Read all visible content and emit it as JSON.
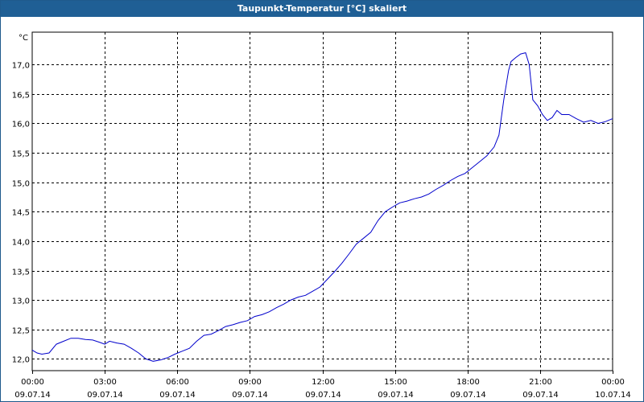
{
  "window": {
    "title": "Taupunkt-Temperatur [°C] skaliert"
  },
  "colors": {
    "titlebar": "#1f5f95",
    "line": "#0000cc",
    "grid": "#000000"
  },
  "chart_data": {
    "type": "line",
    "title": "Taupunkt-Temperatur [°C] skaliert",
    "ylabel": "°C",
    "xlabel": "",
    "grid": true,
    "ylim": [
      11.8,
      17.55
    ],
    "xlim_hours": [
      0,
      24
    ],
    "yticks": [
      "12,0",
      "12,5",
      "13,0",
      "13,5",
      "14,0",
      "14,5",
      "15,0",
      "15,5",
      "16,0",
      "16,5",
      "17,0"
    ],
    "ytick_values": [
      12.0,
      12.5,
      13.0,
      13.5,
      14.0,
      14.5,
      15.0,
      15.5,
      16.0,
      16.5,
      17.0
    ],
    "xticks": [
      {
        "time": "00:00",
        "date": "09.07.14"
      },
      {
        "time": "03:00",
        "date": "09.07.14"
      },
      {
        "time": "06:00",
        "date": "09.07.14"
      },
      {
        "time": "09:00",
        "date": "09.07.14"
      },
      {
        "time": "12:00",
        "date": "09.07.14"
      },
      {
        "time": "15:00",
        "date": "09.07.14"
      },
      {
        "time": "18:00",
        "date": "09.07.14"
      },
      {
        "time": "21:00",
        "date": "09.07.14"
      },
      {
        "time": "00:00",
        "date": "10.07.14"
      }
    ],
    "xtick_hours": [
      0,
      3,
      6,
      9,
      12,
      15,
      18,
      21,
      24
    ],
    "series": [
      {
        "x": [
          0.0,
          0.2,
          0.4,
          0.7,
          1.0,
          1.3,
          1.6,
          1.9,
          2.2,
          2.5,
          2.8,
          3.0,
          3.2,
          3.5,
          3.8,
          4.1,
          4.4,
          4.7,
          5.0,
          5.3,
          5.6,
          5.9,
          6.2,
          6.5,
          6.8,
          7.1,
          7.4,
          7.7,
          8.0,
          8.3,
          8.6,
          8.9,
          9.2,
          9.5,
          9.8,
          10.1,
          10.4,
          10.7,
          11.0,
          11.3,
          11.6,
          11.9,
          12.2,
          12.5,
          12.8,
          13.1,
          13.4,
          13.7,
          14.0,
          14.3,
          14.6,
          14.9,
          15.2,
          15.5,
          15.8,
          16.1,
          16.4,
          16.7,
          17.0,
          17.3,
          17.6,
          17.9,
          18.2,
          18.5,
          18.8,
          19.1,
          19.3,
          19.5,
          19.7,
          19.8,
          20.0,
          20.2,
          20.4,
          20.55,
          20.7,
          20.9,
          21.1,
          21.3,
          21.5,
          21.7,
          21.9,
          22.2,
          22.5,
          22.8,
          23.1,
          23.4,
          23.7,
          24.0
        ],
        "y": [
          12.15,
          12.1,
          12.08,
          12.1,
          12.25,
          12.3,
          12.35,
          12.35,
          12.33,
          12.32,
          12.28,
          12.25,
          12.3,
          12.27,
          12.25,
          12.18,
          12.1,
          12.0,
          11.96,
          11.98,
          12.02,
          12.08,
          12.13,
          12.18,
          12.3,
          12.4,
          12.42,
          12.48,
          12.55,
          12.58,
          12.62,
          12.65,
          12.72,
          12.75,
          12.8,
          12.87,
          12.93,
          13.0,
          13.05,
          13.08,
          13.15,
          13.22,
          13.35,
          13.48,
          13.62,
          13.78,
          13.95,
          14.05,
          14.15,
          14.35,
          14.5,
          14.58,
          14.65,
          14.68,
          14.72,
          14.75,
          14.8,
          14.88,
          14.95,
          15.03,
          15.1,
          15.15,
          15.25,
          15.35,
          15.45,
          15.6,
          15.8,
          16.4,
          16.9,
          17.05,
          17.12,
          17.18,
          17.2,
          17.0,
          16.4,
          16.3,
          16.15,
          16.05,
          16.1,
          16.22,
          16.15,
          16.15,
          16.08,
          16.02,
          16.05,
          16.0,
          16.03,
          16.08
        ]
      }
    ]
  }
}
